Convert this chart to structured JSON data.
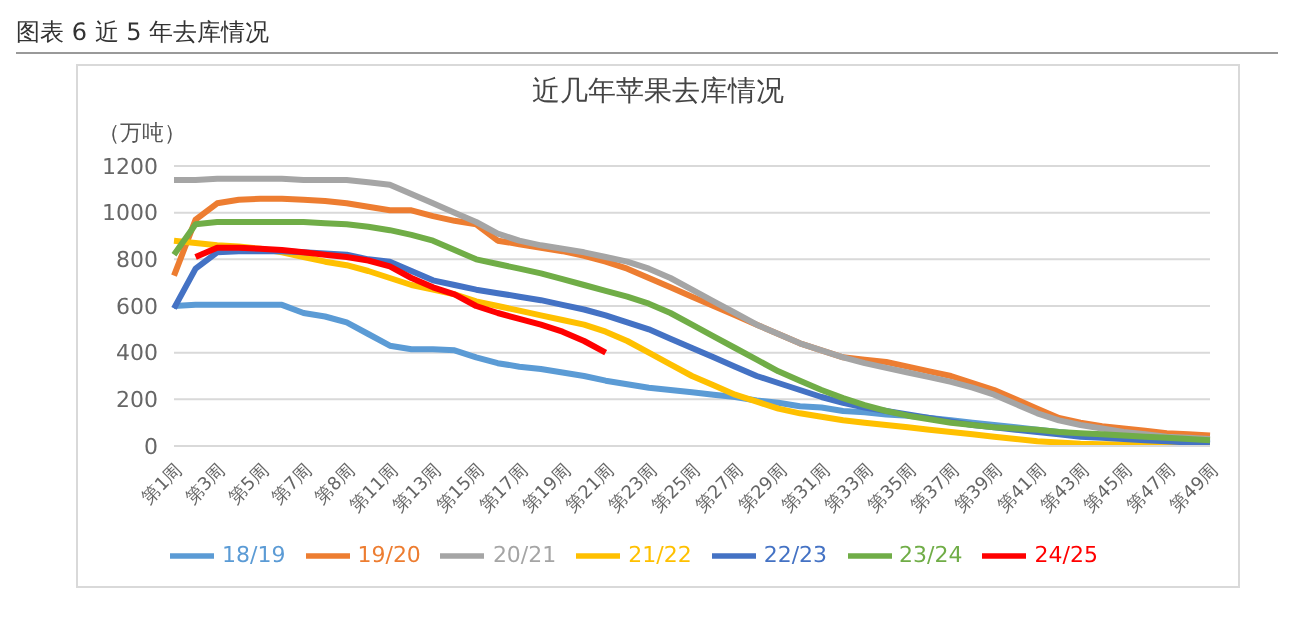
{
  "chart_data": {
    "type": "line",
    "title": "近几年苹果去库情况",
    "subtitle": "图表 6 近 5 年去库情况",
    "ylabel": "（万吨）",
    "categories": [
      "第1周",
      null,
      "第3周",
      null,
      "第5周",
      null,
      "第7周",
      null,
      "第8周",
      null,
      "第11周",
      null,
      "第13周",
      null,
      "第15周",
      null,
      "第17周",
      null,
      "第19周",
      null,
      "第21周",
      null,
      "第23周",
      null,
      "第25周",
      null,
      "第27周",
      null,
      "第29周",
      null,
      "第31周",
      null,
      "第33周",
      null,
      "第35周",
      null,
      "第37周",
      null,
      "第39周",
      null,
      "第41周",
      null,
      "第43周",
      null,
      "第45周",
      null,
      "第47周",
      null,
      "第49周"
    ],
    "ylim": [
      0,
      1200
    ],
    "yticks": [
      0,
      200,
      400,
      600,
      800,
      1000,
      1200
    ],
    "grid": "y",
    "legend": "bottom",
    "marker": "none",
    "line_style": "solid",
    "series": [
      {
        "name": "18/19",
        "color": "#5b9bd5",
        "values": [
          600,
          605,
          605,
          605,
          605,
          605,
          570,
          555,
          530,
          480,
          430,
          415,
          415,
          410,
          380,
          355,
          340,
          330,
          315,
          300,
          280,
          265,
          250,
          240,
          230,
          220,
          210,
          195,
          185,
          170,
          165,
          150,
          145,
          135,
          130,
          120,
          110,
          100,
          90,
          80,
          70,
          60,
          50,
          40,
          35,
          30,
          25,
          20,
          15
        ]
      },
      {
        "name": "19/20",
        "color": "#ed7d31",
        "values": [
          730,
          970,
          1040,
          1055,
          1060,
          1060,
          1055,
          1050,
          1040,
          1025,
          1010,
          1010,
          985,
          965,
          950,
          880,
          865,
          850,
          835,
          815,
          790,
          760,
          720,
          680,
          640,
          600,
          560,
          520,
          480,
          440,
          410,
          380,
          370,
          360,
          340,
          320,
          300,
          270,
          240,
          200,
          160,
          120,
          100,
          85,
          75,
          65,
          55,
          50,
          45
        ]
      },
      {
        "name": "20/21",
        "color": "#a5a5a5",
        "values": [
          1140,
          1140,
          1145,
          1145,
          1145,
          1145,
          1140,
          1140,
          1140,
          1130,
          1120,
          1080,
          1040,
          1000,
          960,
          910,
          880,
          860,
          845,
          830,
          810,
          790,
          760,
          720,
          670,
          620,
          570,
          520,
          480,
          440,
          410,
          380,
          355,
          335,
          315,
          295,
          275,
          250,
          220,
          180,
          140,
          110,
          90,
          75,
          60,
          50,
          40,
          35,
          30
        ]
      },
      {
        "name": "21/22",
        "color": "#ffc000",
        "values": [
          880,
          870,
          860,
          855,
          845,
          830,
          810,
          790,
          775,
          750,
          720,
          690,
          670,
          650,
          620,
          600,
          580,
          560,
          540,
          520,
          490,
          450,
          400,
          350,
          300,
          260,
          220,
          190,
          160,
          140,
          125,
          110,
          100,
          90,
          80,
          70,
          60,
          50,
          40,
          30,
          20,
          15,
          10,
          8,
          6,
          5,
          5,
          5,
          5
        ]
      },
      {
        "name": "22/23",
        "color": "#4472c4",
        "values": [
          590,
          760,
          830,
          835,
          835,
          835,
          830,
          825,
          820,
          800,
          790,
          750,
          710,
          690,
          670,
          655,
          640,
          625,
          605,
          585,
          560,
          530,
          500,
          460,
          420,
          380,
          340,
          300,
          270,
          240,
          210,
          185,
          165,
          150,
          135,
          120,
          105,
          90,
          80,
          70,
          60,
          50,
          40,
          35,
          30,
          25,
          20,
          15,
          10
        ]
      },
      {
        "name": "23/24",
        "color": "#70ad47",
        "values": [
          820,
          950,
          960,
          960,
          960,
          960,
          960,
          955,
          950,
          940,
          925,
          905,
          880,
          840,
          800,
          780,
          760,
          740,
          715,
          690,
          665,
          640,
          610,
          570,
          520,
          470,
          420,
          370,
          320,
          280,
          240,
          205,
          175,
          150,
          130,
          115,
          100,
          90,
          80,
          75,
          70,
          60,
          55,
          50,
          45,
          40,
          35,
          30,
          25
        ]
      },
      {
        "name": "24/25",
        "color": "#ff0000",
        "values": [
          null,
          810,
          850,
          850,
          845,
          840,
          830,
          820,
          810,
          795,
          770,
          720,
          680,
          650,
          600,
          570,
          545,
          520,
          490,
          450,
          400,
          null,
          null,
          null,
          null,
          null,
          null,
          null,
          null,
          null,
          null,
          null,
          null,
          null,
          null,
          null,
          null,
          null,
          null,
          null,
          null,
          null,
          null,
          null,
          null,
          null,
          null,
          null,
          null
        ]
      }
    ]
  }
}
